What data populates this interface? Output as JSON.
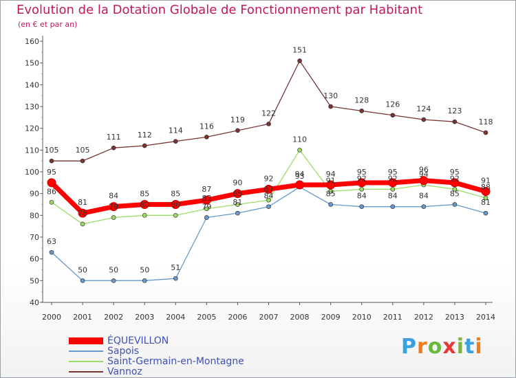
{
  "header": {
    "title": "Evolution de la Dotation Globale de Fonctionnement par Habitant",
    "subtitle": "(en € et par an)"
  },
  "logo": {
    "text": "Proxiti",
    "colors": [
      "#3aa0e0",
      "#ef7d1a",
      "#66bb3a",
      "#e53935",
      "#7cb342",
      "#3aa0e0",
      "#ef7d1a"
    ]
  },
  "chart_data": {
    "type": "line",
    "title": "Evolution de la Dotation Globale de Fonctionnement par Habitant",
    "subtitle": "(en € et par an)",
    "x": [
      "2000",
      "2001",
      "2002",
      "2003",
      "2004",
      "2005",
      "2006",
      "2007",
      "2008",
      "2009",
      "2010",
      "2011",
      "2012",
      "2013",
      "2014"
    ],
    "ylim": [
      40,
      160
    ],
    "yticks": [
      "40",
      "50",
      "60",
      "70",
      "80",
      "90",
      "100",
      "110",
      "120",
      "130",
      "140",
      "150",
      "160"
    ],
    "grid": false,
    "legend": "bottom-left",
    "series": [
      {
        "name": "ÉQUEVILLON",
        "color": "#ff0000",
        "values": [
          95,
          81,
          84,
          85,
          85,
          87,
          90,
          92,
          94,
          94,
          95,
          95,
          96,
          95,
          91
        ],
        "labels": [
          "95",
          "81",
          "84",
          "85",
          "85",
          "87",
          "90",
          "92",
          "94",
          "94",
          "95",
          "95",
          "96",
          "95",
          "91"
        ]
      },
      {
        "name": "Sapois",
        "color": "#6699cc",
        "values": [
          63,
          50,
          50,
          50,
          51,
          79,
          81,
          84,
          93,
          85,
          84,
          84,
          84,
          85,
          81
        ],
        "labels": [
          "63",
          "50",
          "50",
          "50",
          "51",
          "79",
          "81",
          "84",
          "93",
          "85",
          "84",
          "84",
          "84",
          "85",
          "81"
        ]
      },
      {
        "name": "Saint-Germain-en-Montagne",
        "color": "#99dd66",
        "values": [
          86,
          76,
          79,
          80,
          80,
          83,
          85,
          87,
          110,
          91,
          92,
          92,
          94,
          92,
          88
        ],
        "labels": [
          "86",
          "76",
          "79",
          "80",
          "80",
          "83",
          "85",
          "87",
          "110",
          "91",
          "92",
          "92",
          "94",
          "92",
          "88"
        ]
      },
      {
        "name": "Vannoz",
        "color": "#7a3333",
        "values": [
          105,
          105,
          111,
          112,
          114,
          116,
          119,
          122,
          151,
          130,
          128,
          126,
          124,
          123,
          118
        ],
        "labels": [
          "105",
          "105",
          "111",
          "112",
          "114",
          "116",
          "119",
          "122",
          "151",
          "130",
          "128",
          "126",
          "124",
          "123",
          "118"
        ]
      }
    ]
  }
}
